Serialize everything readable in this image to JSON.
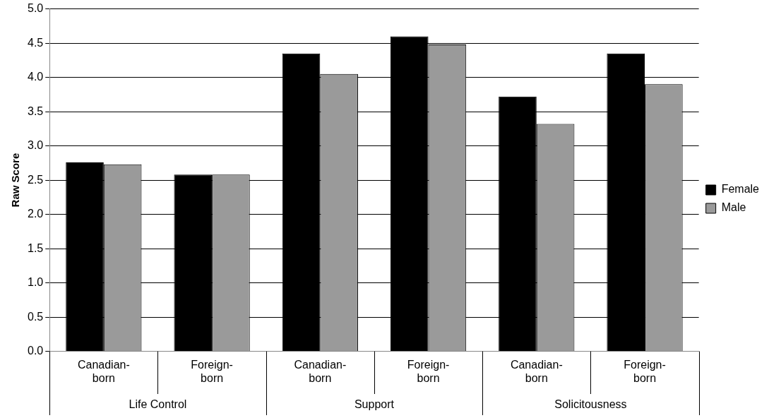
{
  "chart_data": {
    "type": "bar",
    "ylabel": "Raw Score",
    "categories": [
      "Canadian-born",
      "Foreign-born",
      "Canadian-born",
      "Foreign-born",
      "Canadian-born",
      "Foreign-born"
    ],
    "series": [
      {
        "name": "Female",
        "color": "#000000",
        "values": [
          2.76,
          2.58,
          4.35,
          4.6,
          3.72,
          4.35
        ]
      },
      {
        "name": "Male",
        "color": "#9a9a9a",
        "values": [
          2.73,
          2.58,
          4.05,
          4.48,
          3.32,
          3.9
        ]
      }
    ],
    "annotations": [
      "Life Control",
      "Support",
      "Solicitousness"
    ],
    "ylim": [
      0,
      5
    ],
    "yticks": [
      {
        "value": 0,
        "label": "0.0"
      },
      {
        "value": 0.5,
        "label": "0.5"
      },
      {
        "value": 1,
        "label": "1.0"
      },
      {
        "value": 1.5,
        "label": "1.5"
      },
      {
        "value": 2,
        "label": "2.0"
      },
      {
        "value": 2.5,
        "label": "2.5"
      },
      {
        "value": 3,
        "label": "3.0"
      },
      {
        "value": 3.5,
        "label": "3.5"
      },
      {
        "value": 4,
        "label": "4.0"
      },
      {
        "value": 4.5,
        "label": "4.5"
      },
      {
        "value": 5,
        "label": "5.0"
      }
    ],
    "grid": "y",
    "legend": "right"
  }
}
